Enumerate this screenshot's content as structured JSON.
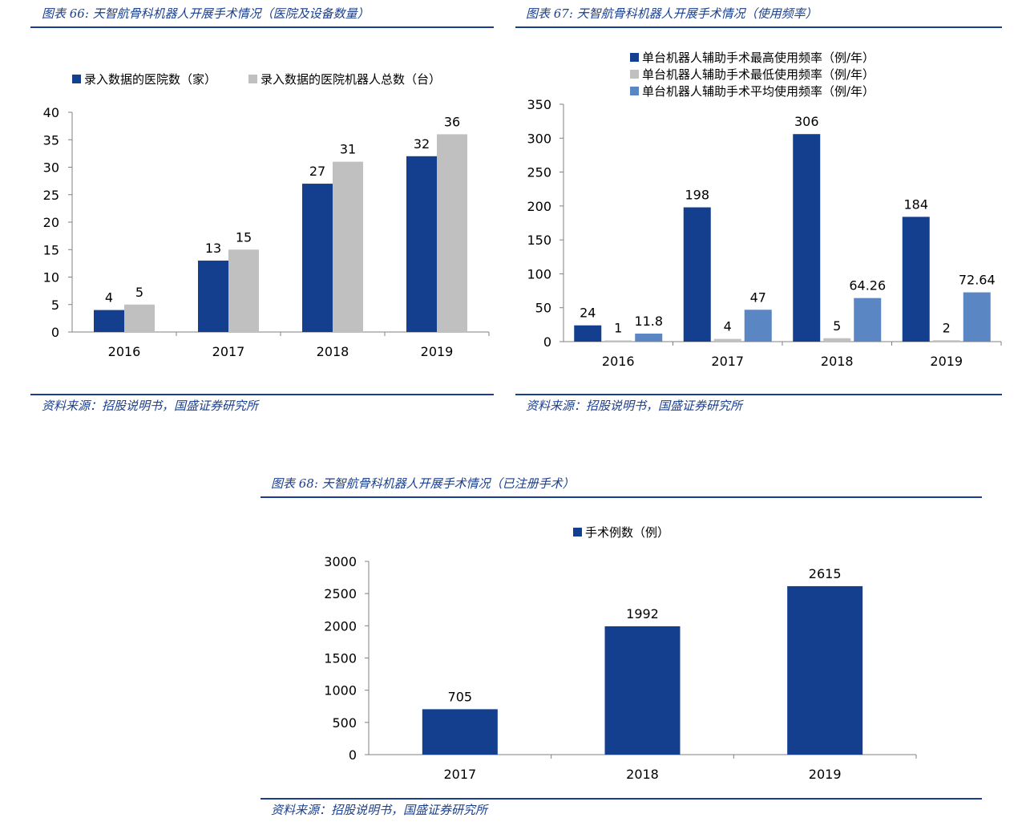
{
  "figures": [
    {
      "title": "图表 66:  天智航骨科机器人开展手术情况（医院及设备数量）",
      "source": "资料来源：招股说明书，国盛证券研究所"
    },
    {
      "title": "图表 67:  天智航骨科机器人开展手术情况（使用频率）",
      "source": "资料来源：招股说明书，国盛证券研究所"
    },
    {
      "title": "图表 68:  天智航骨科机器人开展手术情况（已注册手术）",
      "source": "资料来源：招股说明书，国盛证券研究所"
    }
  ],
  "chart_data": [
    {
      "type": "bar",
      "categories": [
        "2016",
        "2017",
        "2018",
        "2019"
      ],
      "series": [
        {
          "name": "录入数据的医院数（家）",
          "values": [
            4,
            13,
            27,
            32
          ],
          "color": "#143f8f"
        },
        {
          "name": "录入数据的医院机器人总数（台）",
          "values": [
            5,
            15,
            31,
            36
          ],
          "color": "#c0c0c0"
        }
      ],
      "ylim": [
        0,
        40
      ],
      "yticks": [
        0,
        5,
        10,
        15,
        20,
        25,
        30,
        35,
        40
      ],
      "legend": "top",
      "grid": false
    },
    {
      "type": "bar",
      "categories": [
        "2016",
        "2017",
        "2018",
        "2019"
      ],
      "series": [
        {
          "name": "单台机器人辅助手术最高使用频率（例/年）",
          "values": [
            24,
            198,
            306,
            184
          ],
          "labels": [
            "24",
            "198",
            "306",
            "184"
          ],
          "color": "#143f8f"
        },
        {
          "name": "单台机器人辅助手术最低使用频率（例/年）",
          "values": [
            1,
            4,
            5,
            2
          ],
          "labels": [
            "1",
            "4",
            "5",
            "2"
          ],
          "color": "#c0c0c0"
        },
        {
          "name": "单台机器人辅助手术平均使用频率（例/年）",
          "values": [
            11.8,
            47,
            64.26,
            72.64
          ],
          "labels": [
            "11.8",
            "47",
            "64.26",
            "72.64"
          ],
          "color": "#5b86c4"
        }
      ],
      "ylim": [
        0,
        350
      ],
      "yticks": [
        0,
        50,
        100,
        150,
        200,
        250,
        300,
        350
      ],
      "legend": "top",
      "grid": false
    },
    {
      "type": "bar",
      "categories": [
        "2017",
        "2018",
        "2019"
      ],
      "series": [
        {
          "name": "手术例数（例）",
          "values": [
            705,
            1992,
            2615
          ],
          "color": "#143f8f"
        }
      ],
      "ylim": [
        0,
        3000
      ],
      "yticks": [
        0,
        500,
        1000,
        1500,
        2000,
        2500,
        3000
      ],
      "legend": "top",
      "grid": false
    }
  ]
}
